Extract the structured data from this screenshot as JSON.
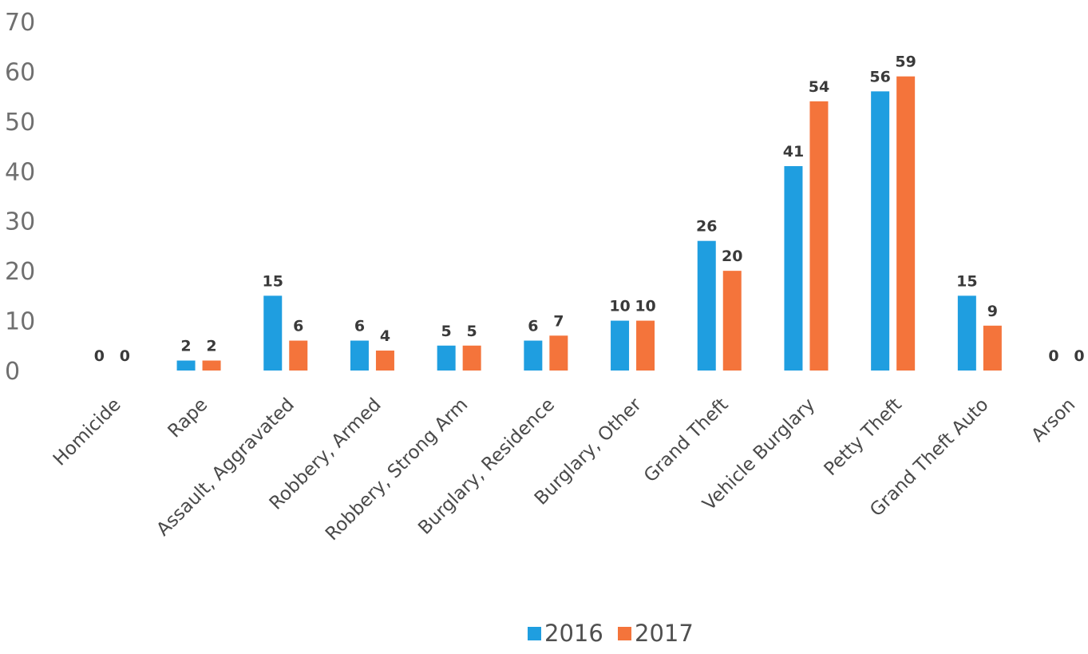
{
  "chart_data": {
    "type": "bar",
    "categories": [
      "Homicide",
      "Rape",
      "Assault, Aggravated",
      "Robbery, Armed",
      "Robbery, Strong Arm",
      "Burglary, Residence",
      "Burglary, Other",
      "Grand Theft",
      "Vehicle Burglary",
      "Petty Theft",
      "Grand Theft Auto",
      "Arson"
    ],
    "series": [
      {
        "name": "2016",
        "color": "#1f9ee0",
        "values": [
          0,
          2,
          15,
          6,
          5,
          6,
          10,
          26,
          41,
          56,
          15,
          0
        ]
      },
      {
        "name": "2017",
        "color": "#f4743b",
        "values": [
          0,
          2,
          6,
          4,
          5,
          7,
          10,
          20,
          54,
          59,
          9,
          0
        ]
      }
    ],
    "title": "",
    "xlabel": "",
    "ylabel": "",
    "ylim": [
      0,
      70
    ],
    "yticks": [
      0,
      10,
      20,
      30,
      40,
      50,
      60,
      70
    ],
    "grid": false,
    "legend_position": "bottom",
    "data_labels": true
  }
}
